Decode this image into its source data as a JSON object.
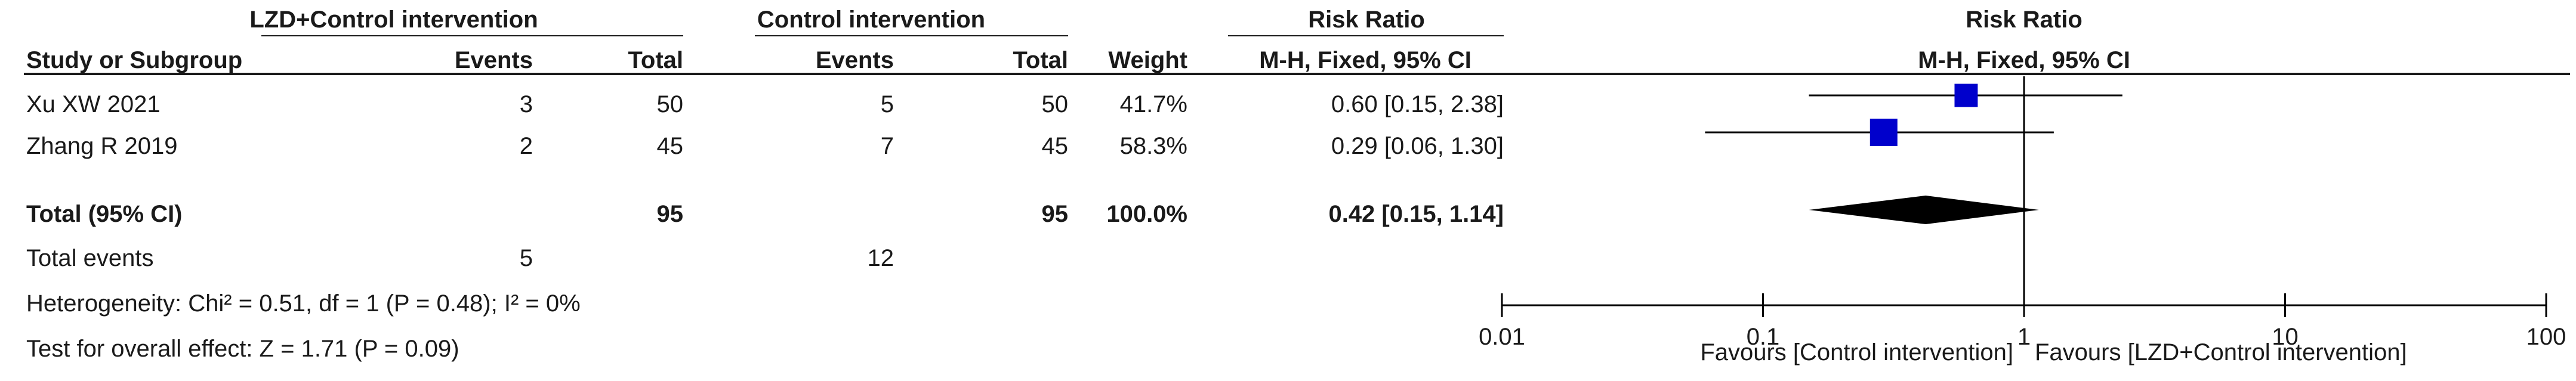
{
  "table": {
    "groups": {
      "experimental": "LZD+Control intervention",
      "control": "Control intervention",
      "risk_ratio": "Risk Ratio",
      "plot_title": "Risk Ratio"
    },
    "columns": {
      "study": "Study or Subgroup",
      "exp_events": "Events",
      "exp_total": "Total",
      "ctl_events": "Events",
      "ctl_total": "Total",
      "weight": "Weight",
      "method": "M-H, Fixed, 95% CI",
      "plot_method": "M-H, Fixed, 95% CI"
    },
    "studies": [
      {
        "name": "Xu XW 2021",
        "exp_events": "3",
        "exp_total": "50",
        "ctl_events": "5",
        "ctl_total": "50",
        "weight": "41.7%",
        "ci_text": "0.60 [0.15, 2.38]"
      },
      {
        "name": "Zhang R 2019",
        "exp_events": "2",
        "exp_total": "45",
        "ctl_events": "7",
        "ctl_total": "45",
        "weight": "58.3%",
        "ci_text": "0.29 [0.06, 1.30]"
      }
    ],
    "total": {
      "label": "Total (95% CI)",
      "exp_total": "95",
      "ctl_total": "95",
      "weight": "100.0%",
      "ci_text": "0.42 [0.15, 1.14]"
    },
    "total_events": {
      "label": "Total events",
      "exp_events": "5",
      "ctl_events": "12"
    },
    "heterogeneity": "Heterogeneity: Chi² = 0.51, df = 1 (P = 0.48); I² = 0%",
    "overall_effect": "Test for overall effect: Z = 1.71 (P = 0.09)"
  },
  "chart_data": {
    "type": "forest",
    "scale": "log",
    "xlim": [
      0.01,
      100
    ],
    "ticks": [
      0.01,
      0.1,
      1,
      10,
      100
    ],
    "tick_labels": [
      "0.01",
      "0.1",
      "1",
      "10",
      "100"
    ],
    "null_value": 1,
    "favours_left": "Favours [Control intervention]",
    "favours_right": "Favours [LZD+Control intervention]",
    "studies": [
      {
        "name": "Xu XW 2021",
        "rr": 0.6,
        "lower": 0.15,
        "upper": 2.38,
        "weight": 41.7
      },
      {
        "name": "Zhang R 2019",
        "rr": 0.29,
        "lower": 0.06,
        "upper": 1.3,
        "weight": 58.3
      }
    ],
    "pooled": {
      "rr": 0.42,
      "lower": 0.15,
      "upper": 1.14
    },
    "colors": {
      "square": "#0000cc",
      "diamond": "#000000",
      "line": "#000000"
    }
  }
}
